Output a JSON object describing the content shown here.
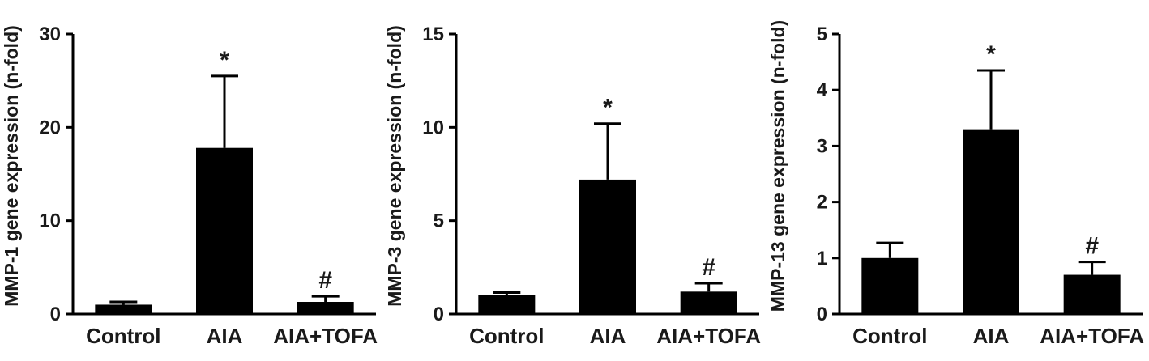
{
  "figure": {
    "description": "Three-panel bar chart figure of MMP gene expression",
    "background": "#ffffff"
  },
  "colors": {
    "bar": "#000000",
    "axis": "#000000",
    "text": "#1a1a1a",
    "error_bar": "#000000"
  },
  "chart_data": [
    {
      "type": "bar",
      "categories": [
        "Control",
        "AIA",
        "AIA+TOFA"
      ],
      "values": [
        1.0,
        17.8,
        1.3
      ],
      "errors": [
        0.3,
        7.7,
        0.6
      ],
      "annotations": [
        "",
        "*",
        "#"
      ],
      "title": "",
      "xlabel": "",
      "ylabel": "MMP-1 gene expression (n-fold)",
      "ylim": [
        0,
        30
      ],
      "yticks": [
        0,
        10,
        20,
        30
      ],
      "grid": false,
      "legend": "none"
    },
    {
      "type": "bar",
      "categories": [
        "Control",
        "AIA",
        "AIA+TOFA"
      ],
      "values": [
        1.0,
        7.2,
        1.2
      ],
      "errors": [
        0.15,
        3.0,
        0.45
      ],
      "annotations": [
        "",
        "*",
        "#"
      ],
      "title": "",
      "xlabel": "",
      "ylabel": "MMP-3 gene expression (n-fold)",
      "ylim": [
        0,
        15
      ],
      "yticks": [
        0,
        5,
        10,
        15
      ],
      "grid": false,
      "legend": "none"
    },
    {
      "type": "bar",
      "categories": [
        "Control",
        "AIA",
        "AIA+TOFA"
      ],
      "values": [
        1.0,
        3.3,
        0.7
      ],
      "errors": [
        0.27,
        1.05,
        0.23
      ],
      "annotations": [
        "",
        "*",
        "#"
      ],
      "title": "",
      "xlabel": "",
      "ylabel": "MMP-13 gene expression (n-fold)",
      "ylim": [
        0,
        5
      ],
      "yticks": [
        0,
        1,
        2,
        3,
        4,
        5
      ],
      "grid": false,
      "legend": "none"
    }
  ]
}
